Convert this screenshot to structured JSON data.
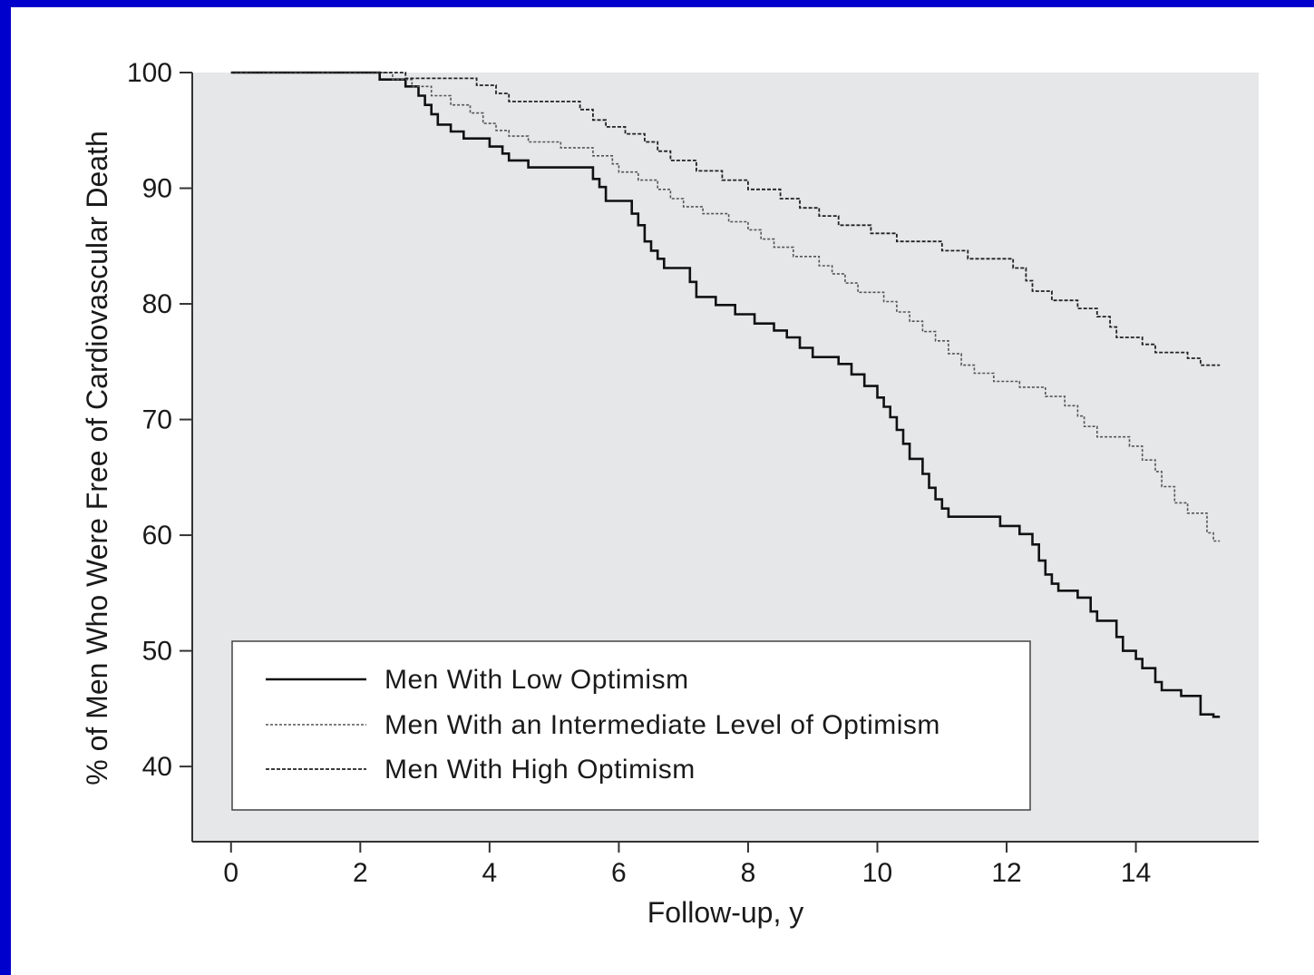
{
  "chart_data": {
    "type": "line",
    "step": true,
    "xlabel": "Follow-up, y",
    "ylabel": "% of Men Who Were Free of Cardiovascular Death",
    "xlim": [
      -0.6,
      15.9
    ],
    "ylim": [
      33.5,
      100
    ],
    "x_ticks": [
      0,
      2,
      4,
      6,
      8,
      10,
      12,
      14
    ],
    "y_ticks": [
      40,
      50,
      60,
      70,
      80,
      90,
      100
    ],
    "legend_position": "lower-left",
    "background": "#e6e7e8",
    "series": [
      {
        "name": "Men With Low Optimism",
        "style": "solid",
        "color": "#111111",
        "points": [
          [
            0,
            100
          ],
          [
            2.3,
            100
          ],
          [
            2.3,
            99.4
          ],
          [
            2.7,
            99.4
          ],
          [
            2.7,
            98.8
          ],
          [
            2.9,
            98.8
          ],
          [
            2.9,
            98
          ],
          [
            3,
            98
          ],
          [
            3,
            97.2
          ],
          [
            3.1,
            97.2
          ],
          [
            3.1,
            96.4
          ],
          [
            3.2,
            96.4
          ],
          [
            3.2,
            95.5
          ],
          [
            3.4,
            95.5
          ],
          [
            3.4,
            94.9
          ],
          [
            3.6,
            94.9
          ],
          [
            3.6,
            94.3
          ],
          [
            4,
            94.3
          ],
          [
            4,
            93.6
          ],
          [
            4.2,
            93.6
          ],
          [
            4.2,
            93
          ],
          [
            4.3,
            93
          ],
          [
            4.3,
            92.4
          ],
          [
            4.6,
            92.4
          ],
          [
            4.6,
            91.8
          ],
          [
            5.6,
            91.8
          ],
          [
            5.6,
            90.8
          ],
          [
            5.7,
            90.8
          ],
          [
            5.7,
            90.1
          ],
          [
            5.8,
            90.1
          ],
          [
            5.8,
            88.9
          ],
          [
            6.2,
            88.9
          ],
          [
            6.2,
            87.8
          ],
          [
            6.3,
            87.8
          ],
          [
            6.3,
            86.8
          ],
          [
            6.4,
            86.8
          ],
          [
            6.4,
            85.4
          ],
          [
            6.5,
            85.4
          ],
          [
            6.5,
            84.6
          ],
          [
            6.6,
            84.6
          ],
          [
            6.6,
            83.9
          ],
          [
            6.7,
            83.9
          ],
          [
            6.7,
            83.1
          ],
          [
            7.1,
            83.1
          ],
          [
            7.1,
            81.9
          ],
          [
            7.2,
            81.9
          ],
          [
            7.2,
            80.6
          ],
          [
            7.5,
            80.6
          ],
          [
            7.5,
            79.9
          ],
          [
            7.8,
            79.9
          ],
          [
            7.8,
            79.1
          ],
          [
            8.1,
            79.1
          ],
          [
            8.1,
            78.3
          ],
          [
            8.4,
            78.3
          ],
          [
            8.4,
            77.7
          ],
          [
            8.6,
            77.7
          ],
          [
            8.6,
            77.1
          ],
          [
            8.8,
            77.1
          ],
          [
            8.8,
            76.2
          ],
          [
            9,
            76.2
          ],
          [
            9,
            75.4
          ],
          [
            9.4,
            75.4
          ],
          [
            9.4,
            74.8
          ],
          [
            9.6,
            74.8
          ],
          [
            9.6,
            73.9
          ],
          [
            9.8,
            73.9
          ],
          [
            9.8,
            72.9
          ],
          [
            10,
            72.9
          ],
          [
            10,
            71.9
          ],
          [
            10.1,
            71.9
          ],
          [
            10.1,
            71.1
          ],
          [
            10.2,
            71.1
          ],
          [
            10.2,
            70.2
          ],
          [
            10.3,
            70.2
          ],
          [
            10.3,
            69.1
          ],
          [
            10.4,
            69.1
          ],
          [
            10.4,
            67.9
          ],
          [
            10.5,
            67.9
          ],
          [
            10.5,
            66.6
          ],
          [
            10.7,
            66.6
          ],
          [
            10.7,
            65.3
          ],
          [
            10.8,
            65.3
          ],
          [
            10.8,
            64.1
          ],
          [
            10.9,
            64.1
          ],
          [
            10.9,
            63.1
          ],
          [
            11,
            63.1
          ],
          [
            11,
            62.3
          ],
          [
            11.1,
            62.3
          ],
          [
            11.1,
            61.6
          ],
          [
            11.9,
            61.6
          ],
          [
            11.9,
            60.8
          ],
          [
            12.2,
            60.8
          ],
          [
            12.2,
            60.1
          ],
          [
            12.4,
            60.1
          ],
          [
            12.4,
            59.2
          ],
          [
            12.5,
            59.2
          ],
          [
            12.5,
            57.8
          ],
          [
            12.6,
            57.8
          ],
          [
            12.6,
            56.6
          ],
          [
            12.7,
            56.6
          ],
          [
            12.7,
            55.8
          ],
          [
            12.8,
            55.8
          ],
          [
            12.8,
            55.2
          ],
          [
            13.1,
            55.2
          ],
          [
            13.1,
            54.6
          ],
          [
            13.3,
            54.6
          ],
          [
            13.3,
            53.4
          ],
          [
            13.4,
            53.4
          ],
          [
            13.4,
            52.6
          ],
          [
            13.7,
            52.6
          ],
          [
            13.7,
            51.2
          ],
          [
            13.8,
            51.2
          ],
          [
            13.8,
            50
          ],
          [
            14,
            50
          ],
          [
            14,
            49.3
          ],
          [
            14.1,
            49.3
          ],
          [
            14.1,
            48.5
          ],
          [
            14.3,
            48.5
          ],
          [
            14.3,
            47.3
          ],
          [
            14.4,
            47.3
          ],
          [
            14.4,
            46.6
          ],
          [
            14.7,
            46.6
          ],
          [
            14.7,
            46.1
          ],
          [
            15,
            46.1
          ],
          [
            15,
            44.5
          ],
          [
            15.2,
            44.5
          ],
          [
            15.2,
            44.3
          ],
          [
            15.3,
            44.3
          ]
        ]
      },
      {
        "name": "Men With an Intermediate Level of Optimism",
        "style": "dashed-light",
        "color": "#555555",
        "points": [
          [
            0,
            100
          ],
          [
            2.5,
            100
          ],
          [
            2.5,
            99.4
          ],
          [
            2.8,
            99.4
          ],
          [
            2.8,
            98.8
          ],
          [
            3.1,
            98.8
          ],
          [
            3.1,
            98
          ],
          [
            3.4,
            98
          ],
          [
            3.4,
            97.2
          ],
          [
            3.7,
            97.2
          ],
          [
            3.7,
            96.5
          ],
          [
            3.9,
            96.5
          ],
          [
            3.9,
            95.6
          ],
          [
            4.1,
            95.6
          ],
          [
            4.1,
            95
          ],
          [
            4.3,
            95
          ],
          [
            4.3,
            94.5
          ],
          [
            4.6,
            94.5
          ],
          [
            4.6,
            94
          ],
          [
            5.1,
            94
          ],
          [
            5.1,
            93.5
          ],
          [
            5.6,
            93.5
          ],
          [
            5.6,
            92.8
          ],
          [
            5.9,
            92.8
          ],
          [
            5.9,
            92.1
          ],
          [
            6,
            92.1
          ],
          [
            6,
            91.4
          ],
          [
            6.3,
            91.4
          ],
          [
            6.3,
            90.7
          ],
          [
            6.6,
            90.7
          ],
          [
            6.6,
            89.9
          ],
          [
            6.8,
            89.9
          ],
          [
            6.8,
            89.1
          ],
          [
            7,
            89.1
          ],
          [
            7,
            88.4
          ],
          [
            7.3,
            88.4
          ],
          [
            7.3,
            87.8
          ],
          [
            7.7,
            87.8
          ],
          [
            7.7,
            87.1
          ],
          [
            8,
            87.1
          ],
          [
            8,
            86.4
          ],
          [
            8.2,
            86.4
          ],
          [
            8.2,
            85.6
          ],
          [
            8.4,
            85.6
          ],
          [
            8.4,
            84.9
          ],
          [
            8.7,
            84.9
          ],
          [
            8.7,
            84.1
          ],
          [
            9.1,
            84.1
          ],
          [
            9.1,
            83.3
          ],
          [
            9.3,
            83.3
          ],
          [
            9.3,
            82.6
          ],
          [
            9.5,
            82.6
          ],
          [
            9.5,
            81.8
          ],
          [
            9.7,
            81.8
          ],
          [
            9.7,
            81
          ],
          [
            10.1,
            81
          ],
          [
            10.1,
            80.2
          ],
          [
            10.3,
            80.2
          ],
          [
            10.3,
            79.3
          ],
          [
            10.5,
            79.3
          ],
          [
            10.5,
            78.5
          ],
          [
            10.7,
            78.5
          ],
          [
            10.7,
            77.6
          ],
          [
            10.9,
            77.6
          ],
          [
            10.9,
            76.8
          ],
          [
            11.1,
            76.8
          ],
          [
            11.1,
            75.7
          ],
          [
            11.3,
            75.7
          ],
          [
            11.3,
            74.7
          ],
          [
            11.5,
            74.7
          ],
          [
            11.5,
            74
          ],
          [
            11.8,
            74
          ],
          [
            11.8,
            73.3
          ],
          [
            12.2,
            73.3
          ],
          [
            12.2,
            72.8
          ],
          [
            12.6,
            72.8
          ],
          [
            12.6,
            72
          ],
          [
            12.9,
            72
          ],
          [
            12.9,
            71.2
          ],
          [
            13.1,
            71.2
          ],
          [
            13.1,
            70.3
          ],
          [
            13.2,
            70.3
          ],
          [
            13.2,
            69.4
          ],
          [
            13.4,
            69.4
          ],
          [
            13.4,
            68.5
          ],
          [
            13.9,
            68.5
          ],
          [
            13.9,
            67.7
          ],
          [
            14.1,
            67.7
          ],
          [
            14.1,
            66.5
          ],
          [
            14.3,
            66.5
          ],
          [
            14.3,
            65.5
          ],
          [
            14.4,
            65.5
          ],
          [
            14.4,
            64.2
          ],
          [
            14.6,
            64.2
          ],
          [
            14.6,
            62.8
          ],
          [
            14.8,
            62.8
          ],
          [
            14.8,
            61.9
          ],
          [
            15.1,
            61.9
          ],
          [
            15.1,
            60.2
          ],
          [
            15.2,
            60.2
          ],
          [
            15.2,
            59.5
          ],
          [
            15.3,
            59.5
          ]
        ]
      },
      {
        "name": "Men With High Optimism",
        "style": "dashed-dark",
        "color": "#222222",
        "points": [
          [
            0,
            100
          ],
          [
            2.7,
            100
          ],
          [
            2.7,
            99.5
          ],
          [
            3.8,
            99.5
          ],
          [
            3.8,
            98.9
          ],
          [
            4.1,
            98.9
          ],
          [
            4.1,
            98.2
          ],
          [
            4.3,
            98.2
          ],
          [
            4.3,
            97.5
          ],
          [
            5.4,
            97.5
          ],
          [
            5.4,
            96.8
          ],
          [
            5.6,
            96.8
          ],
          [
            5.6,
            95.9
          ],
          [
            5.8,
            95.9
          ],
          [
            5.8,
            95.3
          ],
          [
            6.1,
            95.3
          ],
          [
            6.1,
            94.7
          ],
          [
            6.4,
            94.7
          ],
          [
            6.4,
            94
          ],
          [
            6.6,
            94
          ],
          [
            6.6,
            93.2
          ],
          [
            6.8,
            93.2
          ],
          [
            6.8,
            92.4
          ],
          [
            7.2,
            92.4
          ],
          [
            7.2,
            91.5
          ],
          [
            7.6,
            91.5
          ],
          [
            7.6,
            90.7
          ],
          [
            8,
            90.7
          ],
          [
            8,
            89.9
          ],
          [
            8.5,
            89.9
          ],
          [
            8.5,
            89.1
          ],
          [
            8.8,
            89.1
          ],
          [
            8.8,
            88.3
          ],
          [
            9.1,
            88.3
          ],
          [
            9.1,
            87.6
          ],
          [
            9.4,
            87.6
          ],
          [
            9.4,
            86.8
          ],
          [
            9.9,
            86.8
          ],
          [
            9.9,
            86.1
          ],
          [
            10.3,
            86.1
          ],
          [
            10.3,
            85.4
          ],
          [
            11,
            85.4
          ],
          [
            11,
            84.6
          ],
          [
            11.4,
            84.6
          ],
          [
            11.4,
            83.9
          ],
          [
            12.1,
            83.9
          ],
          [
            12.1,
            83.1
          ],
          [
            12.3,
            83.1
          ],
          [
            12.3,
            82
          ],
          [
            12.4,
            82
          ],
          [
            12.4,
            81.1
          ],
          [
            12.7,
            81.1
          ],
          [
            12.7,
            80.3
          ],
          [
            13.1,
            80.3
          ],
          [
            13.1,
            79.6
          ],
          [
            13.4,
            79.6
          ],
          [
            13.4,
            78.9
          ],
          [
            13.6,
            78.9
          ],
          [
            13.6,
            78
          ],
          [
            13.7,
            78
          ],
          [
            13.7,
            77.1
          ],
          [
            14.1,
            77.1
          ],
          [
            14.1,
            76.5
          ],
          [
            14.3,
            76.5
          ],
          [
            14.3,
            75.8
          ],
          [
            14.8,
            75.8
          ],
          [
            14.8,
            75.3
          ],
          [
            15,
            75.3
          ],
          [
            15,
            74.7
          ],
          [
            15.3,
            74.7
          ]
        ]
      }
    ]
  }
}
